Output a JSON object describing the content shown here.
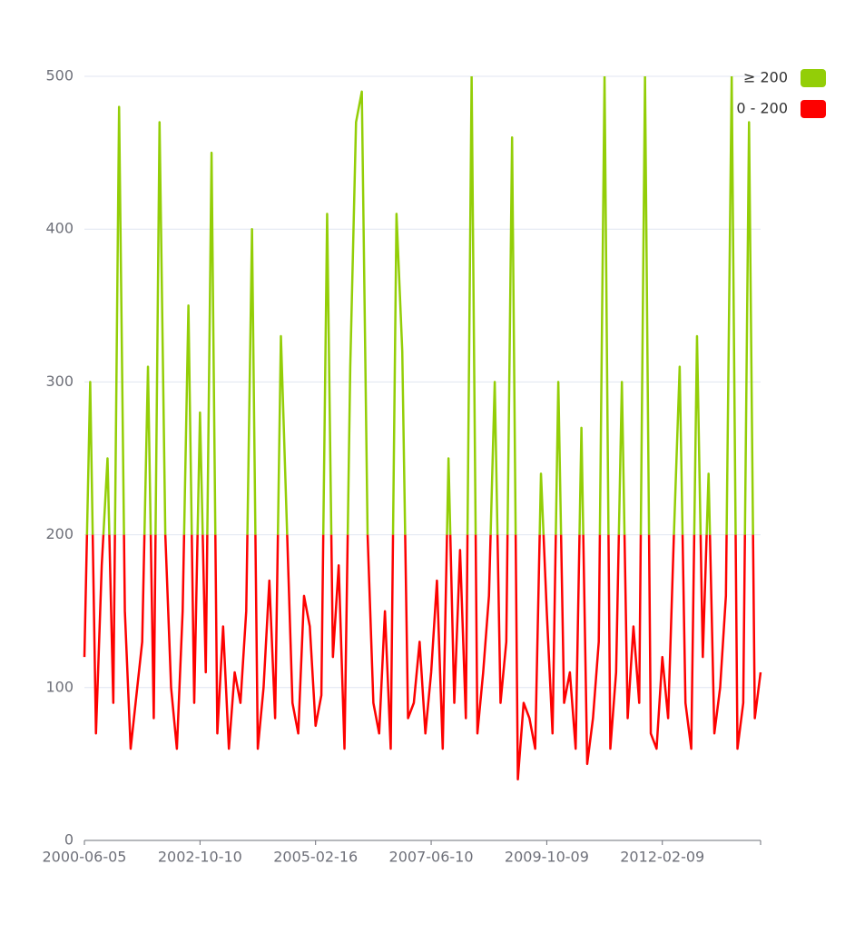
{
  "chart_data": {
    "type": "line",
    "categories": [
      "2000-06-05",
      null,
      null,
      null,
      null,
      null,
      null,
      null,
      null,
      null,
      null,
      null,
      null,
      null,
      null,
      null,
      null,
      null,
      null,
      null,
      "2002-10-10",
      null,
      null,
      null,
      null,
      null,
      null,
      null,
      null,
      null,
      null,
      null,
      null,
      null,
      null,
      null,
      null,
      null,
      null,
      null,
      "2005-02-16",
      null,
      null,
      null,
      null,
      null,
      null,
      null,
      null,
      null,
      null,
      null,
      null,
      null,
      null,
      null,
      null,
      null,
      null,
      null,
      "2007-06-10",
      null,
      null,
      null,
      null,
      null,
      null,
      null,
      null,
      null,
      null,
      null,
      null,
      null,
      null,
      null,
      null,
      null,
      null,
      null,
      "2009-10-09",
      null,
      null,
      null,
      null,
      null,
      null,
      null,
      null,
      null,
      null,
      null,
      null,
      null,
      null,
      null,
      null,
      null,
      null,
      null,
      "2012-02-09",
      null,
      null,
      null,
      null,
      null,
      null,
      null,
      null,
      null,
      null,
      null,
      null,
      null,
      null,
      null,
      null,
      null
    ],
    "values": [
      120,
      300,
      70,
      180,
      250,
      90,
      480,
      150,
      60,
      95,
      130,
      310,
      80,
      470,
      200,
      100,
      60,
      150,
      350,
      90,
      280,
      110,
      450,
      70,
      140,
      60,
      110,
      90,
      150,
      400,
      60,
      100,
      170,
      80,
      330,
      210,
      90,
      70,
      160,
      140,
      75,
      95,
      410,
      120,
      180,
      60,
      310,
      470,
      490,
      200,
      90,
      70,
      150,
      60,
      410,
      320,
      80,
      90,
      130,
      70,
      110,
      170,
      60,
      250,
      90,
      190,
      80,
      500,
      70,
      110,
      160,
      300,
      90,
      130,
      460,
      40,
      90,
      80,
      60,
      240,
      150,
      70,
      300,
      90,
      110,
      60,
      270,
      50,
      80,
      130,
      500,
      60,
      110,
      300,
      80,
      140,
      90,
      500,
      70,
      60,
      120,
      80,
      200,
      310,
      90,
      60,
      330,
      120,
      240,
      70,
      100,
      160,
      500,
      60,
      90,
      470,
      80,
      110
    ],
    "ylim": [
      0,
      500
    ],
    "yticks": [
      0,
      100,
      200,
      300,
      400,
      500
    ],
    "grid": true,
    "legend": "top-right",
    "pieces": [
      {
        "gte": 200,
        "label": "≥ 200",
        "color": "#93ce07"
      },
      {
        "gte": 0,
        "lt": 200,
        "label": "0 - 200",
        "color": "#fd0100"
      }
    ]
  }
}
